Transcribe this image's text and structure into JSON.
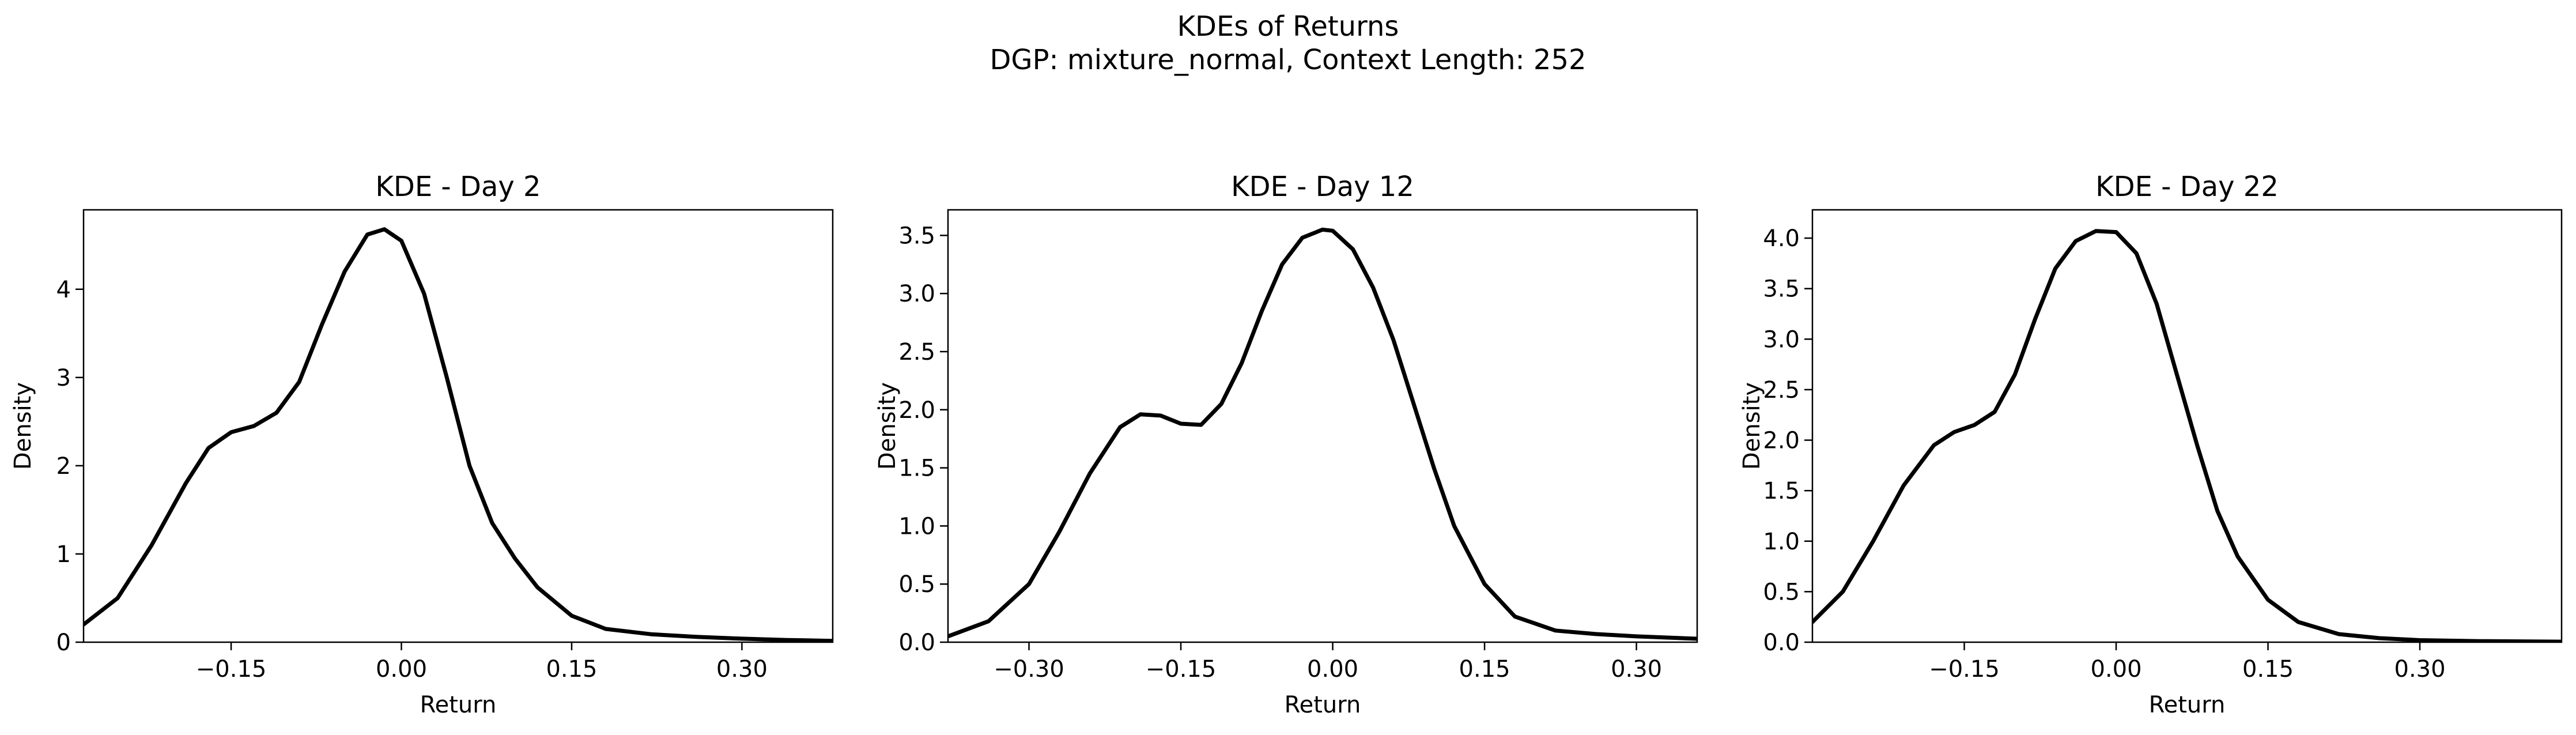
{
  "figure": {
    "title": "KDEs of Returns",
    "subtitle": "DGP: mixture_normal, Context Length: 252"
  },
  "chart_data": [
    {
      "type": "line",
      "title": "KDE - Day 2",
      "xlabel": "Return",
      "ylabel": "Density",
      "xlim": [
        -0.28,
        0.38
      ],
      "ylim": [
        0,
        4.9
      ],
      "xticks": [
        -0.15,
        0.0,
        0.15,
        0.3
      ],
      "xtick_labels": [
        "−0.15",
        "0.00",
        "0.15",
        "0.30"
      ],
      "yticks": [
        0,
        1,
        2,
        3,
        4
      ],
      "ytick_labels": [
        "0",
        "1",
        "2",
        "3",
        "4"
      ],
      "grid": false,
      "series": [
        {
          "color": "#000000",
          "x": [
            -0.28,
            -0.25,
            -0.22,
            -0.19,
            -0.17,
            -0.15,
            -0.13,
            -0.11,
            -0.09,
            -0.07,
            -0.05,
            -0.03,
            -0.015,
            0.0,
            0.02,
            0.04,
            0.06,
            0.08,
            0.1,
            0.12,
            0.15,
            0.18,
            0.22,
            0.26,
            0.3,
            0.34,
            0.38
          ],
          "y": [
            0.2,
            0.5,
            1.1,
            1.8,
            2.2,
            2.38,
            2.45,
            2.6,
            2.95,
            3.6,
            4.2,
            4.62,
            4.68,
            4.55,
            3.95,
            3.0,
            2.0,
            1.35,
            0.95,
            0.62,
            0.3,
            0.15,
            0.09,
            0.06,
            0.04,
            0.025,
            0.015
          ]
        }
      ]
    },
    {
      "type": "line",
      "title": "KDE - Day 12",
      "xlabel": "Return",
      "ylabel": "Density",
      "xlim": [
        -0.38,
        0.36
      ],
      "ylim": [
        0,
        3.72
      ],
      "xticks": [
        -0.3,
        -0.15,
        0.0,
        0.15,
        0.3
      ],
      "xtick_labels": [
        "−0.30",
        "−0.15",
        "0.00",
        "0.15",
        "0.30"
      ],
      "yticks": [
        0,
        0.5,
        1.0,
        1.5,
        2.0,
        2.5,
        3.0,
        3.5
      ],
      "ytick_labels": [
        "0.0",
        "0.5",
        "1.0",
        "1.5",
        "2.0",
        "2.5",
        "3.0",
        "3.5"
      ],
      "grid": false,
      "series": [
        {
          "color": "#000000",
          "x": [
            -0.38,
            -0.34,
            -0.3,
            -0.27,
            -0.24,
            -0.21,
            -0.19,
            -0.17,
            -0.15,
            -0.13,
            -0.11,
            -0.09,
            -0.07,
            -0.05,
            -0.03,
            -0.01,
            0.0,
            0.02,
            0.04,
            0.06,
            0.08,
            0.1,
            0.12,
            0.15,
            0.18,
            0.22,
            0.26,
            0.3,
            0.36
          ],
          "y": [
            0.05,
            0.18,
            0.5,
            0.95,
            1.45,
            1.85,
            1.96,
            1.95,
            1.88,
            1.87,
            2.05,
            2.4,
            2.85,
            3.25,
            3.48,
            3.55,
            3.54,
            3.38,
            3.05,
            2.6,
            2.05,
            1.5,
            1.0,
            0.5,
            0.22,
            0.1,
            0.07,
            0.05,
            0.03
          ]
        }
      ]
    },
    {
      "type": "line",
      "title": "KDE - Day 22",
      "xlabel": "Return",
      "ylabel": "Density",
      "xlim": [
        -0.3,
        0.44
      ],
      "ylim": [
        0,
        4.28
      ],
      "xticks": [
        -0.15,
        0.0,
        0.15,
        0.3
      ],
      "xtick_labels": [
        "−0.15",
        "0.00",
        "0.15",
        "0.30"
      ],
      "yticks": [
        0,
        0.5,
        1.0,
        1.5,
        2.0,
        2.5,
        3.0,
        3.5,
        4.0
      ],
      "ytick_labels": [
        "0.0",
        "0.5",
        "1.0",
        "1.5",
        "2.0",
        "2.5",
        "3.0",
        "3.5",
        "4.0"
      ],
      "grid": false,
      "series": [
        {
          "color": "#000000",
          "x": [
            -0.3,
            -0.27,
            -0.24,
            -0.21,
            -0.18,
            -0.16,
            -0.14,
            -0.12,
            -0.1,
            -0.08,
            -0.06,
            -0.04,
            -0.02,
            0.0,
            0.02,
            0.04,
            0.06,
            0.08,
            0.1,
            0.12,
            0.15,
            0.18,
            0.22,
            0.26,
            0.3,
            0.36,
            0.44
          ],
          "y": [
            0.2,
            0.5,
            1.0,
            1.55,
            1.95,
            2.08,
            2.15,
            2.28,
            2.65,
            3.2,
            3.7,
            3.97,
            4.07,
            4.06,
            3.85,
            3.35,
            2.65,
            1.95,
            1.3,
            0.85,
            0.42,
            0.2,
            0.08,
            0.04,
            0.02,
            0.01,
            0.005
          ]
        }
      ]
    }
  ]
}
